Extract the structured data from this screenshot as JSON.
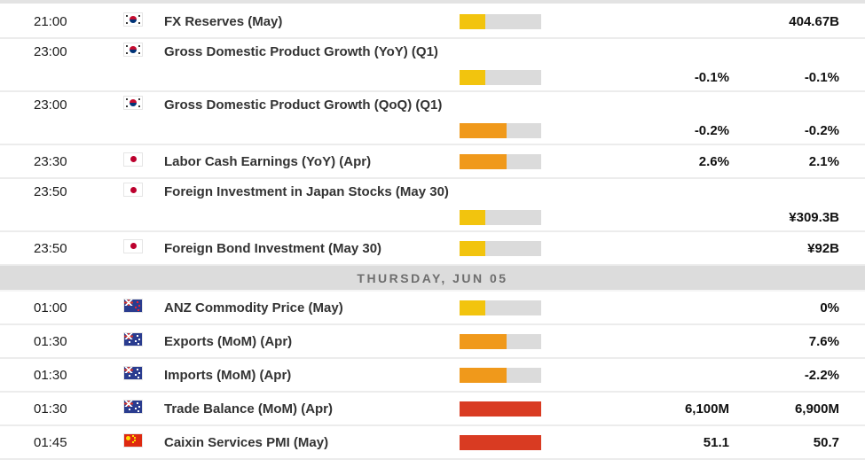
{
  "table": {
    "day_header": {
      "label": "THURSDAY, JUN 05"
    },
    "importance_colors": {
      "low": "#f2c40e",
      "medium": "#f0991b",
      "high": "#d93b22",
      "track": "#dbdbdb"
    },
    "importance_fill": {
      "low": "32%",
      "medium": "58%",
      "high": "100%"
    },
    "rows": [
      {
        "type": "event",
        "time": "21:00",
        "country": "south-korea",
        "flag": "kr",
        "event": "FX Reserves (May)",
        "importance": "low",
        "actual": "",
        "forecast": "",
        "previous": "404.67B",
        "tall": false
      },
      {
        "type": "event",
        "time": "23:00",
        "country": "south-korea",
        "flag": "kr",
        "event": "Gross Domestic Product Growth (YoY) (Q1)",
        "importance": "low",
        "actual": "",
        "forecast": "-0.1%",
        "previous": "-0.1%",
        "tall": true
      },
      {
        "type": "event",
        "time": "23:00",
        "country": "south-korea",
        "flag": "kr",
        "event": "Gross Domestic Product Growth (QoQ) (Q1)",
        "importance": "medium",
        "actual": "",
        "forecast": "-0.2%",
        "previous": "-0.2%",
        "tall": true
      },
      {
        "type": "event",
        "time": "23:30",
        "country": "japan",
        "flag": "jp",
        "event": "Labor Cash Earnings (YoY) (Apr)",
        "importance": "medium",
        "actual": "",
        "forecast": "2.6%",
        "previous": "2.1%",
        "tall": false
      },
      {
        "type": "event",
        "time": "23:50",
        "country": "japan",
        "flag": "jp",
        "event": "Foreign Investment in Japan Stocks (May 30)",
        "importance": "low",
        "actual": "",
        "forecast": "",
        "previous": "¥309.3B",
        "tall": true
      },
      {
        "type": "event",
        "time": "23:50",
        "country": "japan",
        "flag": "jp",
        "event": "Foreign Bond Investment (May 30)",
        "importance": "low",
        "actual": "",
        "forecast": "",
        "previous": "¥92B",
        "tall": false
      },
      {
        "type": "day-header",
        "label": "THURSDAY, JUN 05"
      },
      {
        "type": "event",
        "time": "01:00",
        "country": "new-zealand",
        "flag": "nz",
        "event": "ANZ Commodity Price (May)",
        "importance": "low",
        "actual": "",
        "forecast": "",
        "previous": "0%",
        "tall": false
      },
      {
        "type": "event",
        "time": "01:30",
        "country": "australia",
        "flag": "au",
        "event": "Exports (MoM) (Apr)",
        "importance": "medium",
        "actual": "",
        "forecast": "",
        "previous": "7.6%",
        "tall": false
      },
      {
        "type": "event",
        "time": "01:30",
        "country": "australia",
        "flag": "au",
        "event": "Imports (MoM) (Apr)",
        "importance": "medium",
        "actual": "",
        "forecast": "",
        "previous": "-2.2%",
        "tall": false
      },
      {
        "type": "event",
        "time": "01:30",
        "country": "australia",
        "flag": "au",
        "event": "Trade Balance (MoM) (Apr)",
        "importance": "high",
        "actual": "",
        "forecast": "6,100M",
        "previous": "6,900M",
        "tall": false
      },
      {
        "type": "event",
        "time": "01:45",
        "country": "china",
        "flag": "cn",
        "event": "Caixin Services PMI (May)",
        "importance": "high",
        "actual": "",
        "forecast": "51.1",
        "previous": "50.7",
        "tall": false
      }
    ]
  }
}
